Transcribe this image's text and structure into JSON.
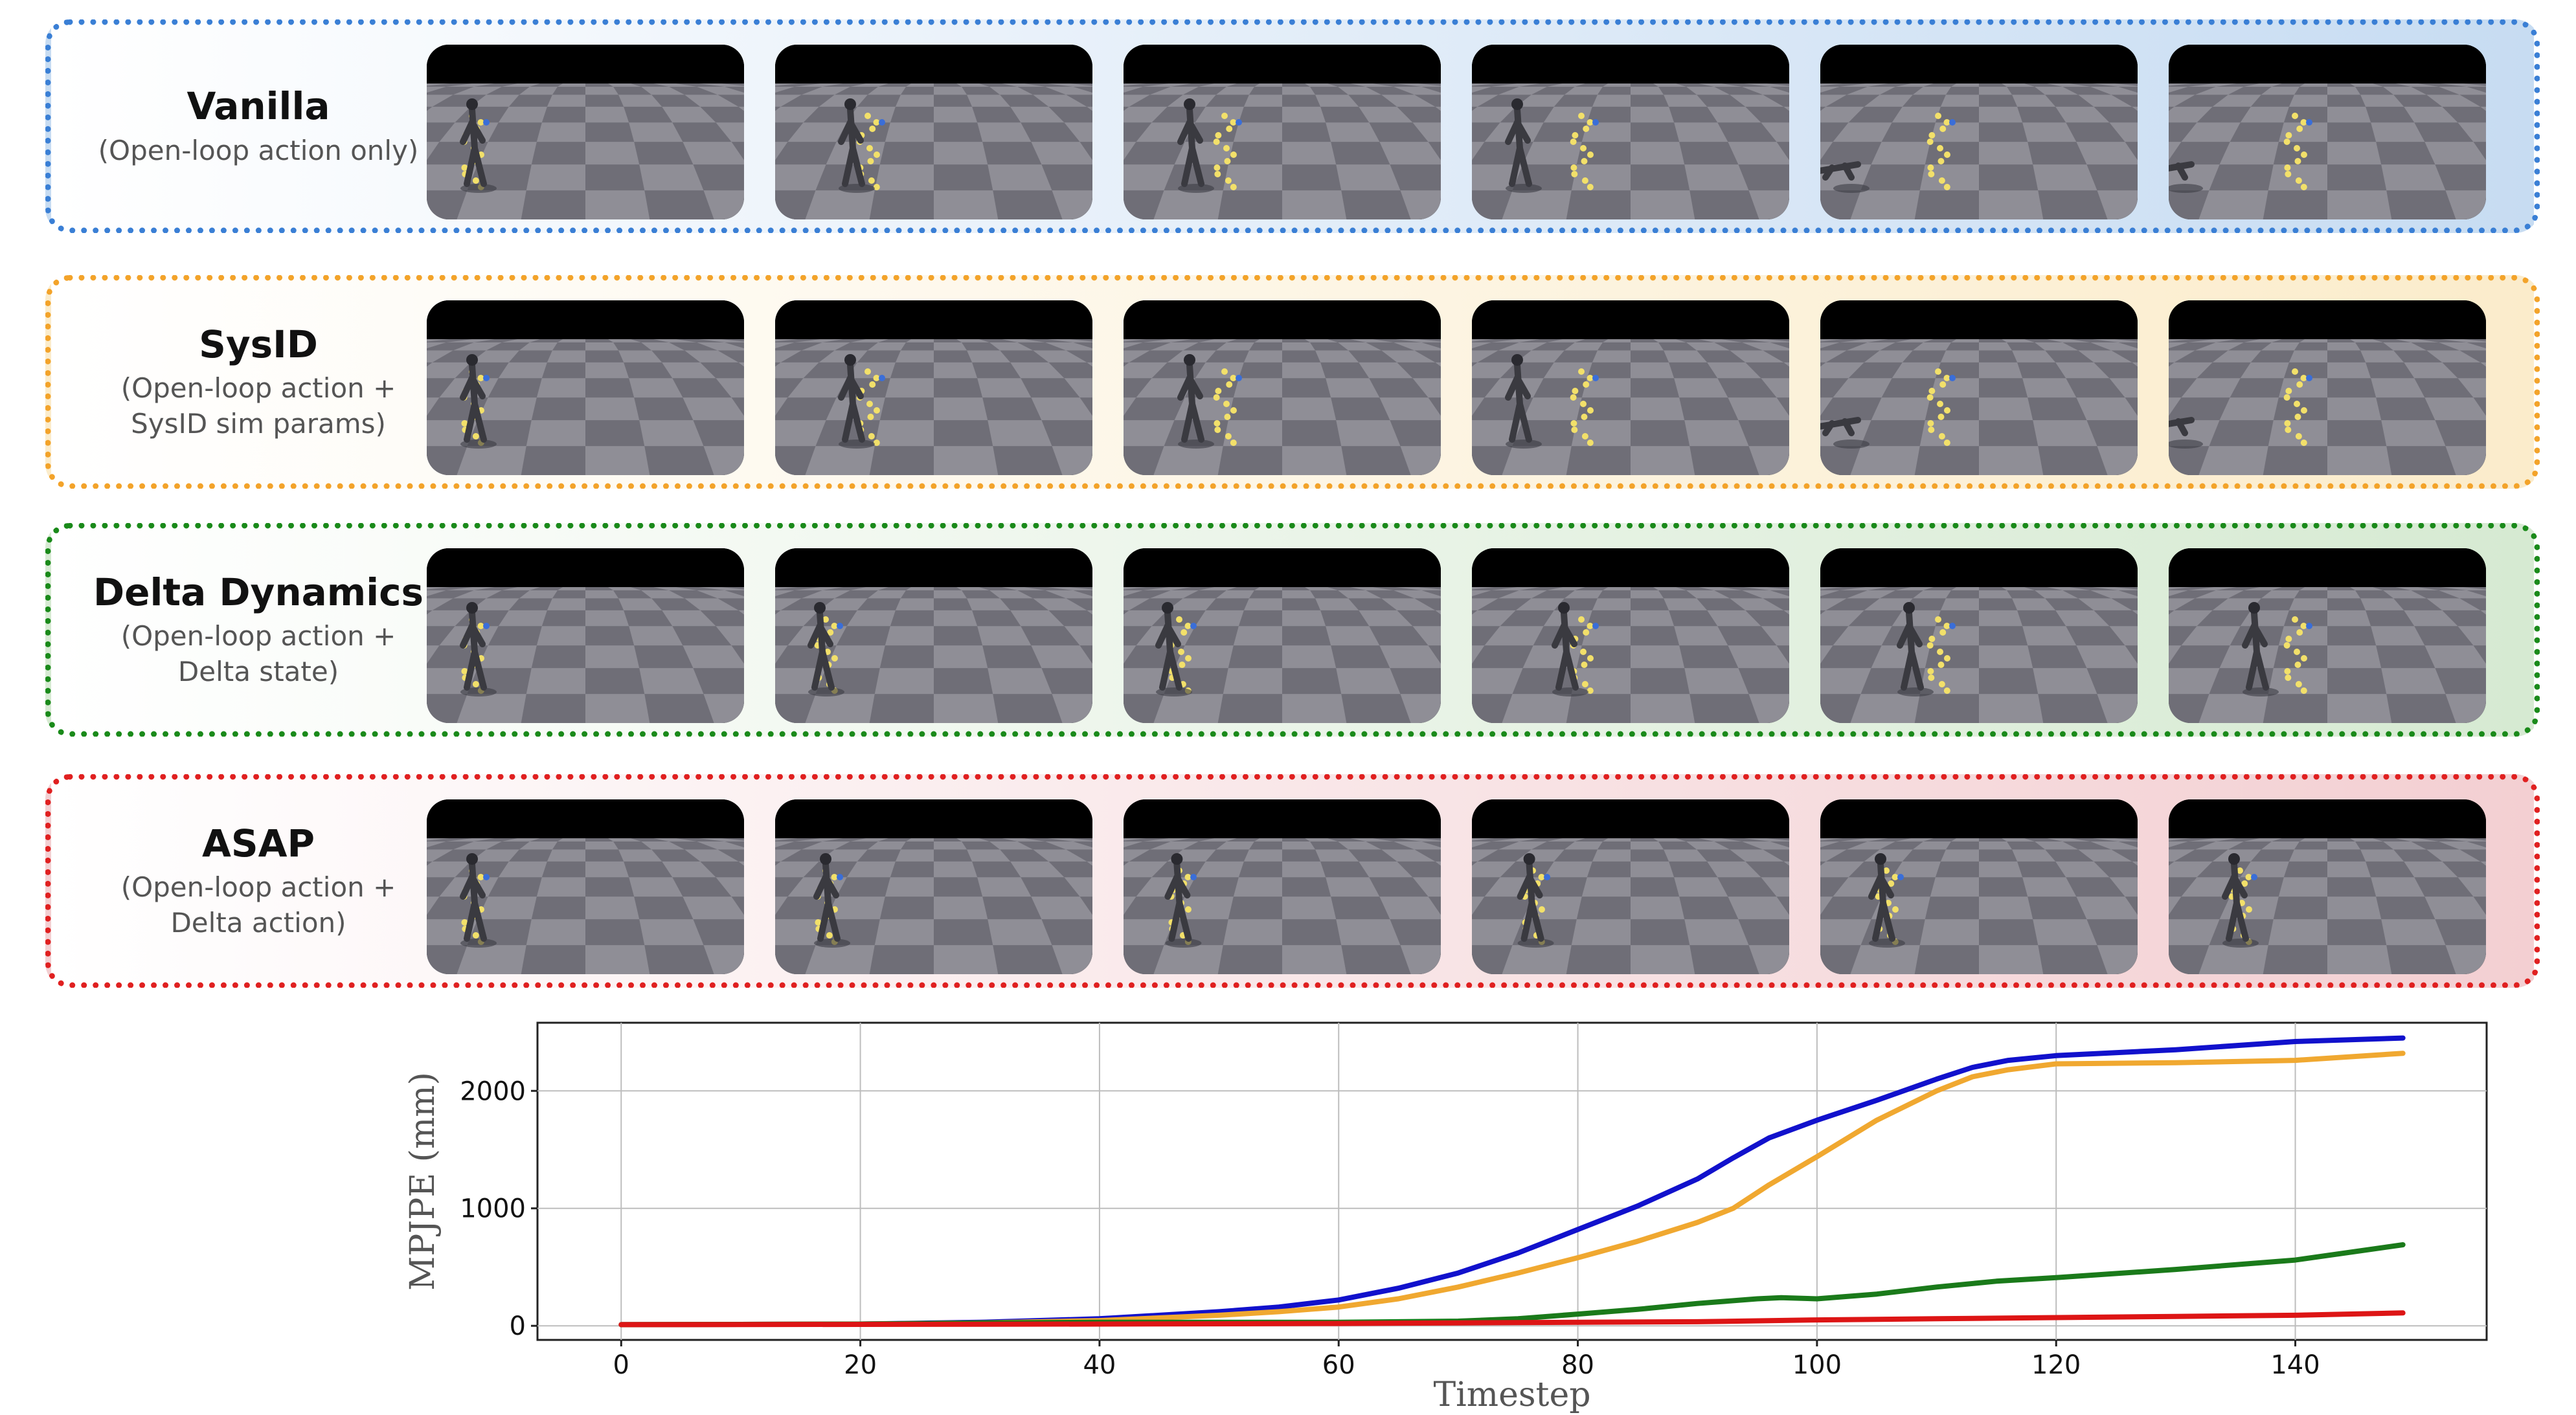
{
  "rows": [
    {
      "title": "Vanilla",
      "subtitle": "(Open-loop action only)",
      "border_color": "#3a7fd5",
      "bg_tint": "#c7dcf2",
      "robot_progress": [
        0.0,
        0.15,
        0.3,
        0.55,
        0.8,
        1.0
      ]
    },
    {
      "title": "SysID",
      "subtitle": "(Open-loop action +\nSysID sim params)",
      "border_color": "#f3a32a",
      "bg_tint": "#fbeccb",
      "robot_progress": [
        0.0,
        0.15,
        0.3,
        0.55,
        0.8,
        1.0
      ]
    },
    {
      "title": "Delta Dynamics",
      "subtitle": "(Open-loop action +\nDelta state)",
      "border_color": "#1a8a1a",
      "bg_tint": "#d6ead2",
      "robot_progress": [
        0.0,
        0.05,
        0.1,
        0.15,
        0.25,
        0.35
      ]
    },
    {
      "title": "ASAP",
      "subtitle": "(Open-loop action +\nDelta action)",
      "border_color": "#e02020",
      "bg_tint": "#f3cfd2",
      "robot_progress": [
        0.0,
        0.0,
        0.02,
        0.03,
        0.05,
        0.05
      ]
    }
  ],
  "chart_data": {
    "type": "line",
    "xlabel": "Timestep",
    "ylabel": "MPJPE (mm)",
    "xlim": [
      -7,
      156
    ],
    "ylim": [
      -120,
      2580
    ],
    "xticks": [
      0,
      20,
      40,
      60,
      80,
      100,
      120,
      140
    ],
    "yticks": [
      0,
      1000,
      2000
    ],
    "grid": true,
    "series": [
      {
        "color": "#1111cc",
        "x": [
          0,
          20,
          30,
          40,
          50,
          55,
          60,
          65,
          70,
          75,
          80,
          85,
          90,
          93,
          96,
          100,
          105,
          110,
          113,
          116,
          120,
          130,
          140,
          149
        ],
        "y": [
          10,
          15,
          30,
          60,
          120,
          160,
          220,
          320,
          450,
          620,
          820,
          1020,
          1250,
          1430,
          1600,
          1750,
          1920,
          2100,
          2200,
          2260,
          2300,
          2350,
          2420,
          2450
        ]
      },
      {
        "color": "#f0a830",
        "x": [
          0,
          20,
          30,
          40,
          50,
          55,
          60,
          65,
          70,
          75,
          80,
          85,
          90,
          93,
          96,
          100,
          105,
          110,
          113,
          116,
          120,
          130,
          140,
          149
        ],
        "y": [
          10,
          15,
          25,
          45,
          90,
          120,
          160,
          230,
          330,
          450,
          580,
          720,
          880,
          1000,
          1200,
          1440,
          1750,
          2000,
          2120,
          2180,
          2230,
          2240,
          2260,
          2320
        ]
      },
      {
        "color": "#1a7a1a",
        "x": [
          0,
          20,
          30,
          40,
          50,
          60,
          70,
          75,
          80,
          85,
          90,
          95,
          97,
          100,
          105,
          110,
          115,
          120,
          130,
          140,
          149
        ],
        "y": [
          10,
          15,
          25,
          30,
          30,
          30,
          40,
          60,
          100,
          140,
          190,
          230,
          240,
          230,
          270,
          330,
          380,
          410,
          480,
          560,
          690
        ]
      },
      {
        "color": "#dd1515",
        "x": [
          0,
          20,
          40,
          60,
          70,
          80,
          90,
          100,
          110,
          120,
          130,
          140,
          149
        ],
        "y": [
          10,
          12,
          15,
          20,
          25,
          30,
          35,
          50,
          60,
          70,
          80,
          90,
          110
        ]
      }
    ]
  }
}
